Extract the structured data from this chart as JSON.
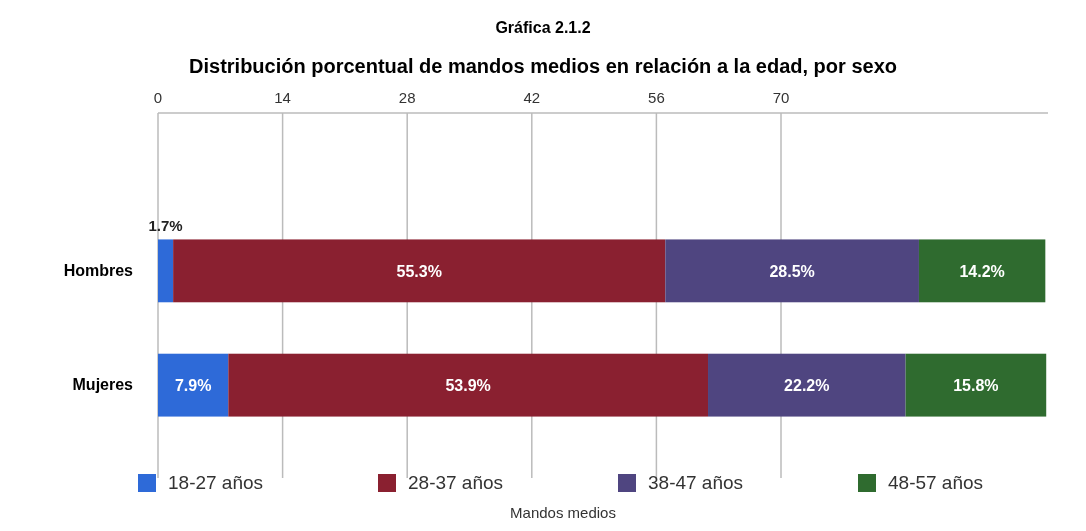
{
  "chart_data": {
    "type": "bar",
    "orientation": "horizontal",
    "stacked": true,
    "title": "Gráfica 2.1.2",
    "subtitle": "Distribución porcentual de mandos medios en relación a la edad, por sexo",
    "xlabel": "Mandos medios",
    "categories": [
      "Hombres",
      "Mujeres"
    ],
    "series": [
      {
        "name": "18-27 años",
        "color": "#2e6ad8",
        "values": [
          1.7,
          7.9
        ],
        "value_labels": [
          "1.7%",
          "7.9%"
        ]
      },
      {
        "name": "28-37 años",
        "color": "#8a2030",
        "values": [
          55.3,
          53.9
        ],
        "value_labels": [
          "55.3%",
          "53.9%"
        ]
      },
      {
        "name": "38-47 años",
        "color": "#4f4580",
        "values": [
          28.5,
          22.2
        ],
        "value_labels": [
          "28.5%",
          "22.2%"
        ]
      },
      {
        "name": "48-57 años",
        "color": "#2f6b2f",
        "values": [
          14.2,
          15.8
        ],
        "value_labels": [
          "14.2%",
          "15.8%"
        ]
      }
    ],
    "xlim": [
      0,
      100
    ],
    "xticks": [
      0,
      14,
      28,
      42,
      56,
      70
    ],
    "grid": "x",
    "legend": "bottom"
  }
}
